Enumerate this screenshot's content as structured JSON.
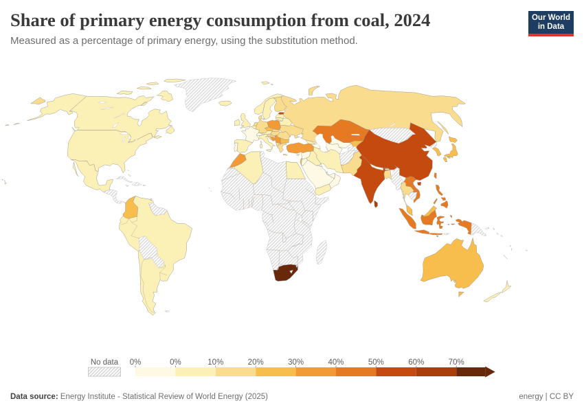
{
  "header": {
    "title": "Share of primary energy consumption from coal, 2024",
    "subtitle": "Measured as a percentage of primary energy, using the substitution method.",
    "logo": {
      "line1": "Our World",
      "line2": "in Data",
      "bg_color": "#1d3d63",
      "accent_color": "#dc352b"
    }
  },
  "legend": {
    "no_data_label": "No data",
    "tick_labels": [
      "0%",
      "0%",
      "10%",
      "20%",
      "30%",
      "40%",
      "50%",
      "60%",
      "70%"
    ],
    "bin_colors": [
      "#fdf9e5",
      "#fbf0b6",
      "#f9dc8e",
      "#f8be4d",
      "#f29a36",
      "#e67a22",
      "#c44a10",
      "#aa3e0b",
      "#67280c"
    ],
    "bin_ranges": [
      "0",
      "0-10",
      "10-20",
      "20-30",
      "30-40",
      "40-50",
      "50-60",
      "60-70",
      "70+"
    ]
  },
  "footer": {
    "source_label": "Data source:",
    "source_text": " Energy Institute - Statistical Review of World Energy (2025)",
    "right_text": "energy | CC BY"
  },
  "map": {
    "type": "choropleth-world-map",
    "unit": "% of primary energy",
    "countries": [
      {
        "id": "canada",
        "value": "0-10"
      },
      {
        "id": "alaska",
        "value": "0-10"
      },
      {
        "id": "usa",
        "value": "0-10"
      },
      {
        "id": "mexico",
        "value": "0-10"
      },
      {
        "id": "greenland",
        "value": "nodata"
      },
      {
        "id": "hawaii",
        "value": "0-10"
      },
      {
        "id": "central-america",
        "value": "nodata"
      },
      {
        "id": "cuba",
        "value": "nodata"
      },
      {
        "id": "hispaniola",
        "value": "nodata"
      },
      {
        "id": "jamaica",
        "value": "nodata"
      },
      {
        "id": "puerto-rico",
        "value": "nodata"
      },
      {
        "id": "bahamas",
        "value": "nodata"
      },
      {
        "id": "south-america-base",
        "value": "0-10"
      },
      {
        "id": "colombia",
        "value": "20-30"
      },
      {
        "id": "guyanas",
        "value": "nodata"
      },
      {
        "id": "bolivia",
        "value": "nodata"
      },
      {
        "id": "paraguay",
        "value": "nodata"
      },
      {
        "id": "falklands",
        "value": "nodata"
      },
      {
        "id": "trinidad",
        "value": "0-10"
      },
      {
        "id": "africa-base",
        "value": "nodata"
      },
      {
        "id": "madagascar",
        "value": "nodata"
      },
      {
        "id": "morocco",
        "value": "30-40"
      },
      {
        "id": "algeria",
        "value": "0-10"
      },
      {
        "id": "egypt",
        "value": "0-10"
      },
      {
        "id": "south-africa",
        "value": "70+"
      },
      {
        "id": "cape-verde",
        "value": "nodata"
      },
      {
        "id": "iceland",
        "value": "0-10"
      },
      {
        "id": "norway",
        "value": "0-10"
      },
      {
        "id": "sweden",
        "value": "0-10"
      },
      {
        "id": "finland",
        "value": "10-20"
      },
      {
        "id": "denmark",
        "value": "10-20"
      },
      {
        "id": "estonia",
        "value": "50-60"
      },
      {
        "id": "latvia",
        "value": "0-10"
      },
      {
        "id": "lithuania",
        "value": "0-10"
      },
      {
        "id": "belarus",
        "value": "0-10"
      },
      {
        "id": "uk",
        "value": "0-10"
      },
      {
        "id": "ireland",
        "value": "0-10"
      },
      {
        "id": "portugal",
        "value": "0"
      },
      {
        "id": "spain",
        "value": "0-10"
      },
      {
        "id": "france",
        "value": "0"
      },
      {
        "id": "belgium-nl",
        "value": "0-10"
      },
      {
        "id": "netherlands",
        "value": "10-20"
      },
      {
        "id": "germany",
        "value": "10-20"
      },
      {
        "id": "switzerland",
        "value": "0"
      },
      {
        "id": "austria",
        "value": "0-10"
      },
      {
        "id": "poland",
        "value": "30-40"
      },
      {
        "id": "czechia",
        "value": "20-30"
      },
      {
        "id": "slovakia",
        "value": "10-20"
      },
      {
        "id": "hungary",
        "value": "10-20"
      },
      {
        "id": "ukraine",
        "value": "10-20"
      },
      {
        "id": "moldova",
        "value": "0-10"
      },
      {
        "id": "romania",
        "value": "10-20"
      },
      {
        "id": "bulgaria",
        "value": "20-30"
      },
      {
        "id": "serbia-region",
        "value": "30-40"
      },
      {
        "id": "bosnia",
        "value": "30-40"
      },
      {
        "id": "croatia",
        "value": "10-20"
      },
      {
        "id": "slovenia",
        "value": "10-20"
      },
      {
        "id": "albania-mk",
        "value": "10-20"
      },
      {
        "id": "greece",
        "value": "10-20"
      },
      {
        "id": "italy",
        "value": "0-10"
      },
      {
        "id": "svalbard",
        "value": "0-10"
      },
      {
        "id": "russia",
        "value": "10-20"
      },
      {
        "id": "kazakhstan",
        "value": "40-50"
      },
      {
        "id": "uzbekistan",
        "value": "0"
      },
      {
        "id": "turkmenistan",
        "value": "0"
      },
      {
        "id": "kyrgyzstan",
        "value": "20-30"
      },
      {
        "id": "tajikistan",
        "value": "nodata"
      },
      {
        "id": "georgia",
        "value": "0-10"
      },
      {
        "id": "armenia-az",
        "value": "0"
      },
      {
        "id": "turkey",
        "value": "30-40"
      },
      {
        "id": "cyprus",
        "value": "0-10"
      },
      {
        "id": "syria",
        "value": "0"
      },
      {
        "id": "lebanon-israel",
        "value": "20-30"
      },
      {
        "id": "jordan",
        "value": "0"
      },
      {
        "id": "iraq",
        "value": "0-10"
      },
      {
        "id": "saudi",
        "value": "0"
      },
      {
        "id": "yemen",
        "value": "0-10"
      },
      {
        "id": "oman",
        "value": "0"
      },
      {
        "id": "uae-qatar",
        "value": "0"
      },
      {
        "id": "kuwait",
        "value": "0"
      },
      {
        "id": "iran",
        "value": "0-10"
      },
      {
        "id": "afghanistan",
        "value": "nodata"
      },
      {
        "id": "pakistan",
        "value": "10-20"
      },
      {
        "id": "india",
        "value": "50-60"
      },
      {
        "id": "nepal-bhutan",
        "value": "0"
      },
      {
        "id": "bangladesh",
        "value": "10-20"
      },
      {
        "id": "sri-lanka",
        "value": "60-70"
      },
      {
        "id": "china",
        "value": "50-60"
      },
      {
        "id": "mongolia",
        "value": "nodata"
      },
      {
        "id": "north-korea",
        "value": "nodata"
      },
      {
        "id": "south-korea",
        "value": "20-30"
      },
      {
        "id": "japan",
        "value": "20-30"
      },
      {
        "id": "taiwan",
        "value": "40-50"
      },
      {
        "id": "myanmar",
        "value": "nodata"
      },
      {
        "id": "thailand",
        "value": "10-20"
      },
      {
        "id": "laos",
        "value": "40-50"
      },
      {
        "id": "cambodia",
        "value": "nodata"
      },
      {
        "id": "vietnam",
        "value": "40-50"
      },
      {
        "id": "malaysia",
        "value": "20-30"
      },
      {
        "id": "indonesia",
        "value": "40-50"
      },
      {
        "id": "timor",
        "value": "nodata"
      },
      {
        "id": "png",
        "value": "nodata"
      },
      {
        "id": "philippines",
        "value": "40-50"
      },
      {
        "id": "australia",
        "value": "20-30"
      },
      {
        "id": "new-zealand",
        "value": "0-10"
      },
      {
        "id": "new-caledonia",
        "value": "nodata"
      },
      {
        "id": "fiji",
        "value": "nodata"
      },
      {
        "id": "vanuatu",
        "value": "nodata"
      },
      {
        "id": "solomon",
        "value": "nodata"
      }
    ]
  }
}
